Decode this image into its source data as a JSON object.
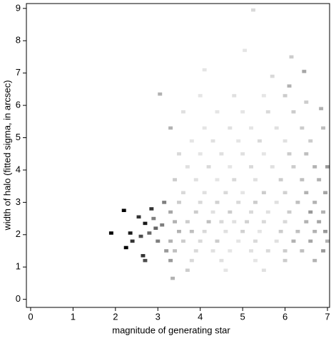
{
  "chart_data": {
    "type": "heatmap2d",
    "x_label": "magnitude of generating star",
    "y_label": "width of halo (fitted sigma, in arcsec)",
    "xlim": [
      -0.1,
      7.05
    ],
    "ylim": [
      -0.25,
      9.15
    ],
    "xticks": [
      0,
      1,
      2,
      3,
      4,
      5,
      6,
      7
    ],
    "yticks": [
      0,
      1,
      2,
      3,
      4,
      5,
      6,
      7,
      8,
      9
    ],
    "color": "#000000",
    "cells": [
      [
        1.9,
        2.05,
        1
      ],
      [
        2.2,
        2.75,
        1
      ],
      [
        2.25,
        1.6,
        1
      ],
      [
        2.35,
        2.05,
        0.9
      ],
      [
        2.4,
        1.8,
        0.8
      ],
      [
        2.55,
        2.55,
        0.8
      ],
      [
        2.6,
        1.95,
        0.7
      ],
      [
        2.65,
        1.35,
        0.8
      ],
      [
        2.7,
        1.2,
        0.7
      ],
      [
        2.7,
        2.35,
        0.9
      ],
      [
        2.8,
        2.05,
        0.6
      ],
      [
        2.85,
        2.8,
        0.8
      ],
      [
        2.9,
        2.5,
        0.5
      ],
      [
        2.95,
        2.2,
        0.6
      ],
      [
        3.0,
        1.8,
        0.5
      ],
      [
        3.1,
        2.3,
        0.5
      ],
      [
        3.15,
        3.0,
        0.5
      ],
      [
        3.2,
        1.5,
        0.4
      ],
      [
        3.05,
        6.35,
        0.3
      ],
      [
        5.25,
        8.95,
        0.15
      ],
      [
        5.05,
        7.7,
        0.1
      ],
      [
        4.1,
        7.1,
        0.1
      ],
      [
        6.15,
        7.5,
        0.2
      ],
      [
        5.7,
        6.9,
        0.15
      ],
      [
        6.1,
        6.6,
        0.3
      ],
      [
        6.5,
        6.1,
        0.2
      ],
      [
        6.85,
        5.9,
        0.3
      ],
      [
        6.45,
        7.05,
        0.35
      ],
      [
        3.35,
        0.65,
        0.3
      ],
      [
        3.7,
        0.9,
        0.2
      ],
      [
        4.6,
        0.9,
        0.1
      ],
      [
        5.5,
        0.9,
        0.12
      ],
      [
        3.3,
        1.2,
        0.4
      ],
      [
        3.8,
        1.2,
        0.15
      ],
      [
        4.5,
        1.2,
        0.12
      ],
      [
        5.3,
        1.2,
        0.1
      ],
      [
        6.0,
        1.2,
        0.2
      ],
      [
        6.7,
        1.2,
        0.3
      ],
      [
        3.4,
        1.5,
        0.25
      ],
      [
        3.9,
        1.5,
        0.15
      ],
      [
        4.3,
        1.5,
        0.12
      ],
      [
        4.7,
        1.5,
        0.1
      ],
      [
        5.2,
        1.5,
        0.12
      ],
      [
        5.6,
        1.5,
        0.15
      ],
      [
        6.0,
        1.5,
        0.2
      ],
      [
        6.4,
        1.5,
        0.25
      ],
      [
        6.9,
        1.5,
        0.4
      ],
      [
        3.3,
        1.8,
        0.3
      ],
      [
        3.6,
        1.8,
        0.2
      ],
      [
        4.0,
        1.8,
        0.15
      ],
      [
        4.4,
        1.8,
        0.2
      ],
      [
        4.9,
        1.8,
        0.1
      ],
      [
        5.3,
        1.8,
        0.15
      ],
      [
        5.8,
        1.8,
        0.12
      ],
      [
        6.2,
        1.8,
        0.3
      ],
      [
        6.6,
        1.8,
        0.35
      ],
      [
        7.0,
        1.8,
        0.3
      ],
      [
        3.5,
        2.1,
        0.3
      ],
      [
        3.8,
        2.1,
        0.25
      ],
      [
        4.1,
        2.1,
        0.15
      ],
      [
        4.6,
        2.1,
        0.12
      ],
      [
        5.0,
        2.1,
        0.18
      ],
      [
        5.4,
        2.1,
        0.1
      ],
      [
        5.9,
        2.1,
        0.2
      ],
      [
        6.3,
        2.1,
        0.25
      ],
      [
        6.7,
        2.1,
        0.3
      ],
      [
        6.95,
        2.1,
        0.4
      ],
      [
        3.4,
        2.4,
        0.3
      ],
      [
        3.7,
        2.4,
        0.2
      ],
      [
        4.2,
        2.4,
        0.25
      ],
      [
        4.5,
        2.4,
        0.15
      ],
      [
        4.8,
        2.4,
        0.12
      ],
      [
        5.1,
        2.4,
        0.18
      ],
      [
        5.5,
        2.4,
        0.15
      ],
      [
        6.0,
        2.4,
        0.15
      ],
      [
        6.5,
        2.4,
        0.3
      ],
      [
        6.8,
        2.4,
        0.35
      ],
      [
        3.3,
        2.7,
        0.35
      ],
      [
        3.9,
        2.7,
        0.2
      ],
      [
        4.3,
        2.7,
        0.12
      ],
      [
        4.7,
        2.7,
        0.2
      ],
      [
        5.2,
        2.7,
        0.15
      ],
      [
        5.6,
        2.7,
        0.12
      ],
      [
        6.1,
        2.7,
        0.2
      ],
      [
        6.6,
        2.7,
        0.4
      ],
      [
        6.9,
        2.7,
        0.3
      ],
      [
        3.5,
        3.0,
        0.2
      ],
      [
        4.0,
        3.0,
        0.15
      ],
      [
        4.4,
        3.0,
        0.18
      ],
      [
        4.9,
        3.0,
        0.15
      ],
      [
        5.3,
        3.0,
        0.2
      ],
      [
        5.8,
        3.0,
        0.12
      ],
      [
        6.3,
        3.0,
        0.25
      ],
      [
        6.7,
        3.0,
        0.3
      ],
      [
        3.6,
        3.3,
        0.15
      ],
      [
        4.1,
        3.3,
        0.12
      ],
      [
        4.6,
        3.3,
        0.15
      ],
      [
        5.0,
        3.3,
        0.1
      ],
      [
        5.5,
        3.3,
        0.2
      ],
      [
        6.0,
        3.3,
        0.18
      ],
      [
        6.5,
        3.3,
        0.3
      ],
      [
        6.95,
        3.3,
        0.35
      ],
      [
        3.4,
        3.7,
        0.2
      ],
      [
        3.9,
        3.7,
        0.12
      ],
      [
        4.4,
        3.7,
        0.1
      ],
      [
        4.8,
        3.7,
        0.15
      ],
      [
        5.3,
        3.7,
        0.12
      ],
      [
        5.9,
        3.7,
        0.2
      ],
      [
        6.4,
        3.7,
        0.25
      ],
      [
        6.8,
        3.7,
        0.3
      ],
      [
        3.7,
        4.1,
        0.12
      ],
      [
        4.2,
        4.1,
        0.15
      ],
      [
        4.7,
        4.1,
        0.1
      ],
      [
        5.2,
        4.1,
        0.15
      ],
      [
        5.7,
        4.1,
        0.12
      ],
      [
        6.2,
        4.1,
        0.2
      ],
      [
        6.7,
        4.1,
        0.3
      ],
      [
        7.0,
        4.1,
        0.4
      ],
      [
        3.5,
        4.5,
        0.15
      ],
      [
        4.0,
        4.5,
        0.1
      ],
      [
        4.5,
        4.5,
        0.12
      ],
      [
        5.0,
        4.5,
        0.12
      ],
      [
        5.5,
        4.5,
        0.1
      ],
      [
        6.1,
        4.5,
        0.2
      ],
      [
        6.5,
        4.5,
        0.25
      ],
      [
        3.8,
        4.9,
        0.1
      ],
      [
        4.3,
        4.9,
        0.12
      ],
      [
        4.9,
        4.9,
        0.1
      ],
      [
        5.4,
        4.9,
        0.15
      ],
      [
        6.0,
        4.9,
        0.12
      ],
      [
        6.6,
        4.9,
        0.2
      ],
      [
        3.3,
        5.3,
        0.3
      ],
      [
        4.1,
        5.3,
        0.1
      ],
      [
        4.7,
        5.3,
        0.12
      ],
      [
        5.2,
        5.3,
        0.1
      ],
      [
        5.8,
        5.3,
        0.12
      ],
      [
        6.4,
        5.3,
        0.2
      ],
      [
        6.9,
        5.3,
        0.25
      ],
      [
        3.6,
        5.8,
        0.12
      ],
      [
        4.4,
        5.8,
        0.1
      ],
      [
        5.0,
        5.8,
        0.1
      ],
      [
        5.6,
        5.8,
        0.15
      ],
      [
        6.2,
        5.8,
        0.2
      ],
      [
        4.0,
        6.3,
        0.1
      ],
      [
        4.8,
        6.3,
        0.12
      ],
      [
        5.5,
        6.3,
        0.1
      ],
      [
        6.0,
        6.3,
        0.2
      ]
    ]
  }
}
